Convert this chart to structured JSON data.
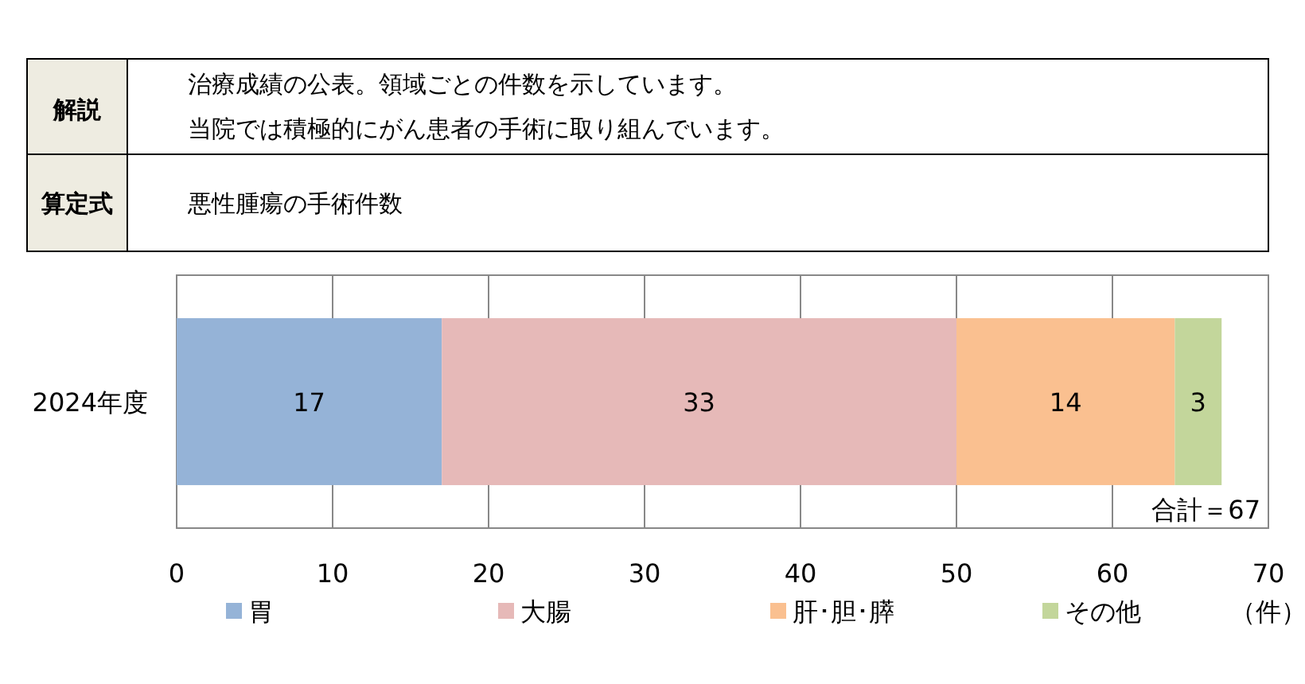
{
  "chart_data": {
    "type": "bar",
    "orientation": "horizontal",
    "stacked": true,
    "categories": [
      "2024年度"
    ],
    "series": [
      {
        "name": "胃",
        "color": "#95b3d7",
        "values": [
          17
        ]
      },
      {
        "name": "大腸",
        "color": "#e6b9b8",
        "values": [
          33
        ]
      },
      {
        "name": "肝･胆･膵",
        "color": "#fac090",
        "values": [
          14
        ]
      },
      {
        "name": "その他",
        "color": "#c3d69b",
        "values": [
          3
        ]
      }
    ],
    "data_labels": true,
    "totals": [
      "合計＝67"
    ],
    "xlim": [
      0,
      70
    ],
    "xticks": [
      0,
      10,
      20,
      30,
      40,
      50,
      60,
      70
    ],
    "grid": "x",
    "legend": "bottom",
    "xlabel": "（件）",
    "annotations": [
      "解説",
      "治療成績の公表。領域ごとの件数を示しています。",
      "当院では積極的にがん患者の手術に取り組んでいます。",
      "算定式",
      "悪性腫瘍の手術件数"
    ]
  }
}
